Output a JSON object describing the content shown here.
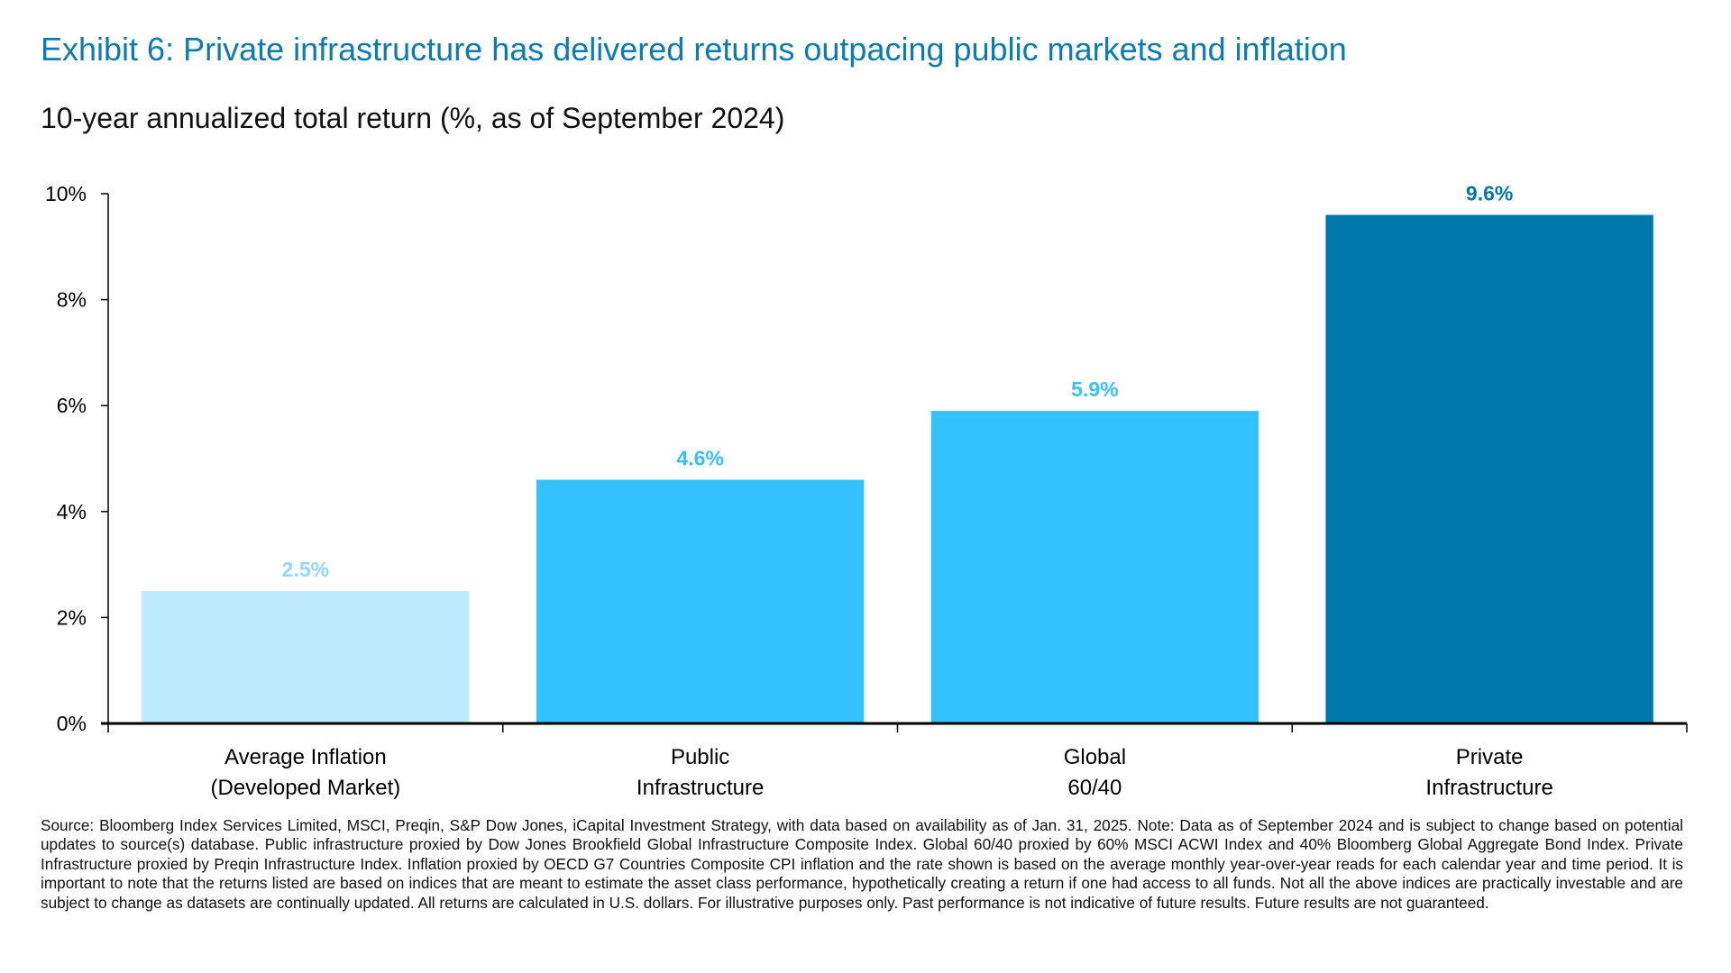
{
  "header": {
    "title": "Exhibit 6: Private infrastructure has delivered returns outpacing public markets and inflation",
    "subtitle": "10-year annualized total return (%, as of September 2024)"
  },
  "chart_data": {
    "type": "bar",
    "categories": [
      [
        "Average Inflation",
        "(Developed Market)"
      ],
      [
        "Public",
        "Infrastructure"
      ],
      [
        "Global",
        "60/40"
      ],
      [
        "Private",
        "Infrastructure"
      ]
    ],
    "values": [
      2.5,
      4.6,
      5.9,
      9.6
    ],
    "data_labels": [
      "2.5%",
      "4.6%",
      "5.9%",
      "9.6%"
    ],
    "colors": [
      "#bdeafd",
      "#33c1ff",
      "#33c1ff",
      "#0077aa"
    ],
    "label_colors": [
      "#8fd9fb",
      "#33c1ff",
      "#33c1ff",
      "#0077aa"
    ],
    "ylim": [
      0,
      10
    ],
    "yticks": [
      0,
      2,
      4,
      6,
      8,
      10
    ],
    "ytick_labels": [
      "0%",
      "2%",
      "4%",
      "6%",
      "8%",
      "10%"
    ],
    "xlabel": "",
    "ylabel": "",
    "grid": false,
    "legend": false
  },
  "footer": {
    "source": "Source: Bloomberg Index Services Limited, MSCI, Preqin, S&P Dow Jones, iCapital Investment Strategy, with data based on availability as of Jan. 31, 2025. Note: Data as of September 2024 and is subject to change based on potential updates to source(s) database. Public infrastructure proxied by Dow Jones Brookfield Global Infrastructure Composite Index. Global 60/40 proxied by 60% MSCI ACWI Index and 40% Bloomberg Global Aggregate Bond Index. Private Infrastructure proxied by Preqin Infrastructure Index. Inflation proxied by OECD G7 Countries Composite CPI inflation and the rate shown is based on the average monthly year-over-year reads for each calendar year and time period. It is important to note that the returns listed are based on indices that are meant to estimate the asset class performance, hypothetically creating a return if one had access to all funds. Not all the above indices are practically investable and are subject to change as datasets are continually updated. All returns are calculated in U.S. dollars. For illustrative purposes only. Past performance is not indicative of future results. Future results are not guaranteed."
  }
}
